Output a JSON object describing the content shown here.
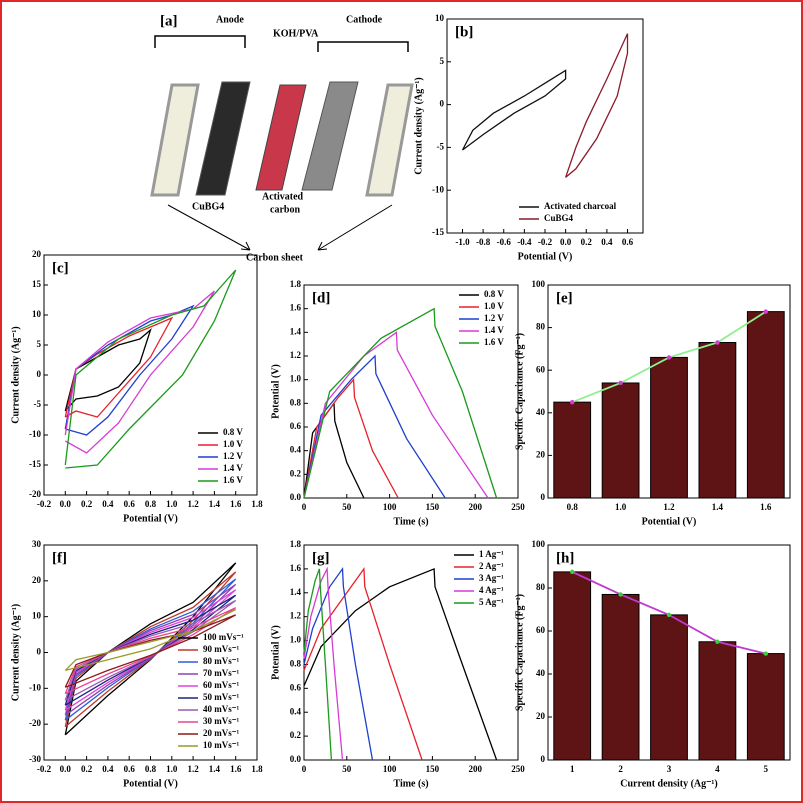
{
  "diagram": {
    "panel": "[a]",
    "anode": "Anode",
    "electrolyte": "KOH/PVA",
    "cathode": "Cathode",
    "anode_material": "CuBG4",
    "cathode_material": [
      "Activated",
      "carbon"
    ],
    "current_collector": "Carbon sheet"
  },
  "chart_data": [
    {
      "type": "line",
      "panel": "[b]",
      "x_label": "Potential (V)",
      "y_label": "Current density (Ag⁻¹)",
      "legend": "lower right",
      "xlim": [
        -1.15,
        0.75
      ],
      "xticks": [
        {
          "value": -1,
          "label": "-1.0"
        },
        -0.8,
        -0.6,
        -0.4,
        -0.2,
        {
          "value": 0,
          "label": "0.0"
        },
        0.2,
        0.4,
        0.6
      ],
      "ylim": [
        -15,
        10
      ],
      "yticks": [
        -15,
        -10,
        -5,
        0,
        5,
        10
      ],
      "series": [
        {
          "name": "Activated charcoal",
          "color": "#111111",
          "x": [
            -1,
            -0.9,
            -0.7,
            -0.4,
            -0.2,
            0,
            0,
            -0.2,
            -0.5,
            -0.8,
            -1
          ],
          "values": [
            -5.3,
            -3,
            -1,
            1,
            2.5,
            4,
            3,
            1,
            -1,
            -3.5,
            -5.3
          ]
        },
        {
          "name": "CuBG4",
          "color": "#8b1a2b",
          "x": [
            0,
            0.1,
            0.2,
            0.4,
            0.6,
            0.6,
            0.5,
            0.3,
            0.1,
            0
          ],
          "values": [
            -8.5,
            -5,
            -2,
            3,
            8.3,
            6,
            1,
            -4,
            -7.5,
            -8.5
          ]
        }
      ]
    },
    {
      "type": "line",
      "panel": "[c]",
      "x_label": "Potential (V)",
      "y_label": "Current density (Ag⁻¹)",
      "legend": "lower right",
      "xlim": [
        -0.2,
        1.8
      ],
      "xticks": [
        -0.2,
        {
          "value": 0,
          "label": "0.0"
        },
        0.2,
        0.4,
        0.6,
        0.8,
        {
          "value": 1,
          "label": "1.0"
        },
        1.2,
        1.4,
        1.6,
        1.8
      ],
      "ylim": [
        -20,
        20
      ],
      "yticks": [
        -20,
        -15,
        -10,
        -5,
        0,
        5,
        10,
        15,
        20
      ],
      "series": [
        {
          "name": "0.8 V",
          "color": "#000000",
          "x": [
            0,
            0.1,
            0.3,
            0.5,
            0.7,
            0.8,
            0.7,
            0.5,
            0.3,
            0.1,
            0
          ],
          "values": [
            -6,
            1,
            3,
            5,
            6,
            7.5,
            2,
            -2,
            -3.5,
            -4,
            -6
          ]
        },
        {
          "name": "1.0 V",
          "color": "#e8202a",
          "x": [
            0,
            0.1,
            0.3,
            0.6,
            0.8,
            1.0,
            0.8,
            0.5,
            0.3,
            0.1,
            0
          ],
          "values": [
            -7,
            1,
            3.5,
            6.5,
            8,
            9.5,
            3,
            -3,
            -7,
            -6,
            -7
          ]
        },
        {
          "name": "1.2 V",
          "color": "#1f3fcf",
          "x": [
            0,
            0.1,
            0.4,
            0.8,
            1.0,
            1.2,
            1.0,
            0.7,
            0.4,
            0.2,
            0
          ],
          "values": [
            -9,
            1,
            5,
            9,
            10,
            11.5,
            6,
            0,
            -7,
            -10,
            -9
          ]
        },
        {
          "name": "1.4 V",
          "color": "#d63bd6",
          "x": [
            0,
            0.1,
            0.4,
            0.8,
            1.2,
            1.4,
            1.2,
            0.8,
            0.5,
            0.2,
            0
          ],
          "values": [
            -10,
            1,
            5.5,
            9.5,
            11,
            14,
            8,
            0,
            -8,
            -13,
            -11
          ]
        },
        {
          "name": "1.6 V",
          "color": "#1a9a1a",
          "x": [
            0,
            0.1,
            0.5,
            1.0,
            1.3,
            1.6,
            1.4,
            1.1,
            0.6,
            0.3,
            0
          ],
          "values": [
            -15,
            0,
            6,
            10,
            11.5,
            17.5,
            9,
            0,
            -9,
            -15,
            -15.5
          ]
        }
      ]
    },
    {
      "type": "line",
      "panel": "[d]",
      "x_label": "Time (s)",
      "y_label": "Potential (V)",
      "legend": "upper right",
      "xlim": [
        0,
        250
      ],
      "xticks": [
        0,
        50,
        100,
        150,
        200,
        250
      ],
      "ylim": [
        0,
        1.8
      ],
      "yticks": [
        {
          "value": 0,
          "label": "0.0"
        },
        0.2,
        0.4,
        0.6,
        0.8,
        {
          "value": 1,
          "label": "1.0"
        },
        1.2,
        1.4,
        1.6,
        1.8
      ],
      "series": [
        {
          "name": "0.8 V",
          "color": "#000000",
          "x": [
            0,
            10,
            25,
            35,
            36,
            50,
            70
          ],
          "values": [
            0,
            0.55,
            0.7,
            0.8,
            0.65,
            0.3,
            0
          ]
        },
        {
          "name": "1.0 V",
          "color": "#e8202a",
          "x": [
            0,
            15,
            40,
            58,
            59,
            80,
            110
          ],
          "values": [
            0,
            0.6,
            0.85,
            1.0,
            0.85,
            0.4,
            0
          ]
        },
        {
          "name": "1.2 V",
          "color": "#1f3fcf",
          "x": [
            0,
            20,
            55,
            83,
            84,
            120,
            165
          ],
          "values": [
            0,
            0.7,
            1.0,
            1.2,
            1.05,
            0.5,
            0
          ]
        },
        {
          "name": "1.4 V",
          "color": "#d63bd6",
          "x": [
            0,
            25,
            70,
            108,
            109,
            150,
            215
          ],
          "values": [
            0,
            0.8,
            1.2,
            1.4,
            1.25,
            0.7,
            0
          ]
        },
        {
          "name": "1.6 V",
          "color": "#1a9a1a",
          "x": [
            0,
            30,
            90,
            152,
            153,
            185,
            225
          ],
          "values": [
            0,
            0.9,
            1.35,
            1.6,
            1.45,
            0.9,
            0
          ]
        }
      ]
    },
    {
      "type": "bar",
      "panel": "[e]",
      "x_label": "Potential (V)",
      "y_label": "Specific Capacitance (Fg⁻¹)",
      "categories": [
        "0.8",
        "1.0",
        "1.2",
        "1.4",
        "1.6"
      ],
      "values": [
        45,
        54,
        66,
        73,
        87.5
      ],
      "color": "#5e1414",
      "line_color": "#8ef08e",
      "marker_color": "#d63bd6",
      "ylim": [
        0,
        100
      ],
      "yticks": [
        0,
        20,
        40,
        60,
        80,
        100
      ]
    },
    {
      "type": "line",
      "panel": "[f]",
      "x_label": "Potential (V)",
      "y_label": "Current density (Ag⁻¹)",
      "legend": "lower right",
      "xlim": [
        -0.2,
        1.8
      ],
      "xticks": [
        -0.2,
        {
          "value": 0,
          "label": "0.0"
        },
        0.2,
        0.4,
        0.6,
        0.8,
        {
          "value": 1,
          "label": "1.0"
        },
        1.2,
        1.4,
        1.6,
        1.8
      ],
      "ylim": [
        -30,
        30
      ],
      "yticks": [
        -30,
        -20,
        -10,
        0,
        10,
        20,
        30
      ],
      "series": [
        {
          "name": "100 mVs⁻¹",
          "color": "#000000",
          "x": [
            0,
            0.1,
            0.4,
            0.8,
            1.2,
            1.6,
            1.2,
            0.8,
            0.4,
            0
          ],
          "values": [
            -23,
            -8,
            0,
            8,
            14,
            25,
            10,
            -2,
            -12,
            -23
          ]
        },
        {
          "name": "90 mVs⁻¹",
          "color": "#c0392b",
          "x": [
            0,
            0.1,
            0.4,
            0.8,
            1.2,
            1.6,
            1.2,
            0.8,
            0.4,
            0
          ],
          "values": [
            -20.7,
            -7.2,
            0,
            7.2,
            12.6,
            22.5,
            9,
            -1.8,
            -10.8,
            -20.7
          ]
        },
        {
          "name": "80 mVs⁻¹",
          "color": "#2e5bd8",
          "x": [
            0,
            0.1,
            0.4,
            0.8,
            1.2,
            1.6,
            1.2,
            0.8,
            0.4,
            0
          ],
          "values": [
            -18.9,
            -6.6,
            0,
            6.6,
            11.5,
            20.5,
            8.2,
            -1.6,
            -9.8,
            -18.9
          ]
        },
        {
          "name": "70 mVs⁻¹",
          "color": "#8e44ad",
          "x": [
            0,
            0.1,
            0.4,
            0.8,
            1.2,
            1.6,
            1.2,
            0.8,
            0.4,
            0
          ],
          "values": [
            -17.5,
            -6.1,
            0,
            6.1,
            10.6,
            19,
            7.6,
            -1.5,
            -9.1,
            -17.5
          ]
        },
        {
          "name": "60 mVs⁻¹",
          "color": "#e040e0",
          "x": [
            0,
            0.1,
            0.4,
            0.8,
            1.2,
            1.6,
            1.2,
            0.8,
            0.4,
            0
          ],
          "values": [
            -16.1,
            -5.6,
            0,
            5.6,
            9.8,
            17.5,
            7,
            -1.4,
            -8.4,
            -16.1
          ]
        },
        {
          "name": "50 mVs⁻¹",
          "color": "#1a237e",
          "x": [
            0,
            0.1,
            0.4,
            0.8,
            1.2,
            1.6,
            1.2,
            0.8,
            0.4,
            0
          ],
          "values": [
            -14.7,
            -5.1,
            0,
            5.1,
            9,
            16,
            6.4,
            -1.3,
            -7.7,
            -14.7
          ]
        },
        {
          "name": "40 mVs⁻¹",
          "color": "#9b59b6",
          "x": [
            0,
            0.1,
            0.4,
            0.8,
            1.2,
            1.6,
            1.2,
            0.8,
            0.4,
            0
          ],
          "values": [
            -13.3,
            -4.6,
            0,
            4.6,
            8.1,
            14.5,
            5.8,
            -1.2,
            -7,
            -13.3
          ]
        },
        {
          "name": "30 mVs⁻¹",
          "color": "#e84393",
          "x": [
            0,
            0.1,
            0.4,
            0.8,
            1.2,
            1.6,
            1.2,
            0.8,
            0.4,
            0
          ],
          "values": [
            -11.5,
            -4,
            0,
            4,
            7,
            12.5,
            5,
            -1,
            -6,
            -11.5
          ]
        },
        {
          "name": "20 mVs⁻¹",
          "color": "#8b1a1a",
          "x": [
            0,
            0.1,
            0.4,
            0.8,
            1.2,
            1.6,
            1.2,
            0.8,
            0.4,
            0
          ],
          "values": [
            -9.7,
            -3.4,
            0,
            3.4,
            5.9,
            10.5,
            4.2,
            -0.8,
            -5,
            -9.7
          ]
        },
        {
          "name": "10 mVs⁻¹",
          "color": "#9a9a2a",
          "x": [
            0,
            0.1,
            0.4,
            0.8,
            1.2,
            1.6,
            1.2,
            0.8,
            0.4,
            0
          ],
          "values": [
            -5,
            -2,
            0,
            3,
            6,
            12,
            6,
            1,
            -2,
            -5
          ]
        }
      ]
    },
    {
      "type": "line",
      "panel": "[g]",
      "x_label": "Time (s)",
      "y_label": "Potential (V)",
      "legend": "upper right",
      "xlim": [
        0,
        250
      ],
      "xticks": [
        0,
        50,
        100,
        150,
        200,
        250
      ],
      "ylim": [
        0,
        1.8
      ],
      "yticks": [
        {
          "value": 0,
          "label": "0.0"
        },
        0.2,
        0.4,
        0.6,
        0.8,
        {
          "value": 1,
          "label": "1.0"
        },
        1.2,
        1.4,
        1.6,
        1.8
      ],
      "series": [
        {
          "name": "1 Ag⁻¹",
          "color": "#000000",
          "x": [
            0,
            20,
            60,
            100,
            152,
            153,
            180,
            225
          ],
          "values": [
            0.62,
            0.95,
            1.25,
            1.45,
            1.6,
            1.45,
            0.9,
            0
          ]
        },
        {
          "name": "2 Ag⁻¹",
          "color": "#e8202a",
          "x": [
            0,
            20,
            50,
            70,
            71,
            100,
            138
          ],
          "values": [
            0.75,
            1.1,
            1.4,
            1.6,
            1.45,
            0.8,
            0
          ]
        },
        {
          "name": "3 Ag⁻¹",
          "color": "#1f3fcf",
          "x": [
            0,
            10,
            30,
            45,
            46,
            60,
            80
          ],
          "values": [
            0.8,
            1.1,
            1.45,
            1.6,
            1.45,
            0.8,
            0
          ]
        },
        {
          "name": "4 Ag⁻¹",
          "color": "#d63bd6",
          "x": [
            0,
            8,
            20,
            27,
            28,
            35,
            45
          ],
          "values": [
            0.85,
            1.2,
            1.5,
            1.6,
            1.45,
            0.8,
            0
          ]
        },
        {
          "name": "5 Ag⁻¹",
          "color": "#1a9a1a",
          "x": [
            0,
            5,
            13,
            18,
            19,
            25,
            32
          ],
          "values": [
            0.9,
            1.25,
            1.5,
            1.6,
            1.45,
            0.8,
            0
          ]
        }
      ]
    },
    {
      "type": "bar",
      "panel": "[h]",
      "x_label": "Current density (Ag⁻¹)",
      "y_label": "Specific Capacitance (Fg⁻¹)",
      "categories": [
        "1",
        "2",
        "3",
        "4",
        "5"
      ],
      "values": [
        87.5,
        77,
        67.5,
        55,
        49.5
      ],
      "color": "#5e1414",
      "line_color": "#c13ad0",
      "marker_color": "#3cd13c",
      "ylim": [
        0,
        100
      ],
      "yticks": [
        0,
        20,
        40,
        60,
        80,
        100
      ]
    }
  ]
}
